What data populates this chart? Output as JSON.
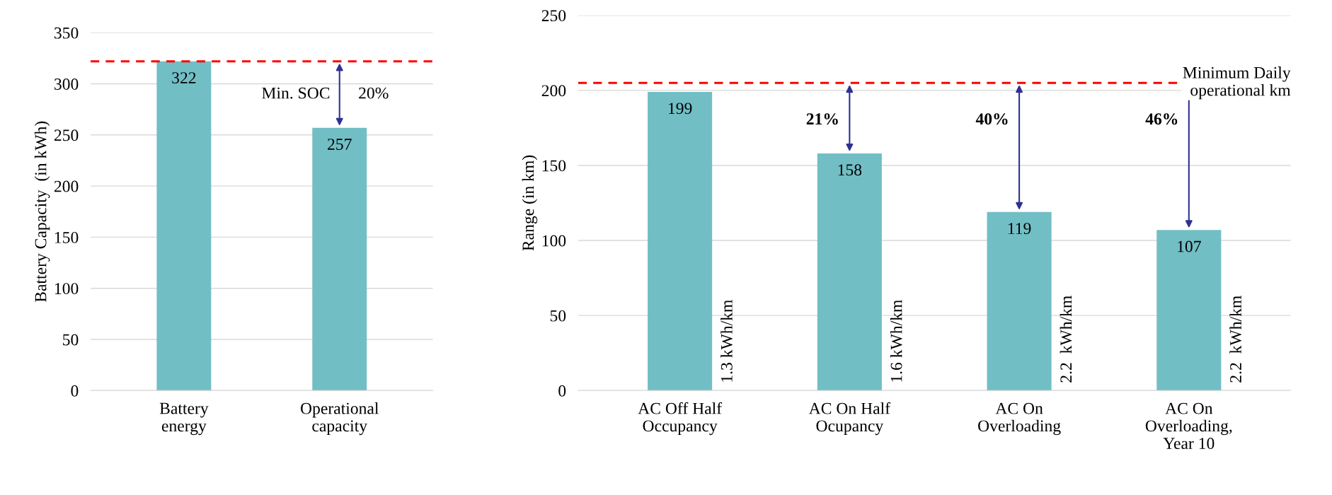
{
  "chart_data": [
    {
      "type": "bar",
      "ylabel": "Battery Capacity  (in kWh)",
      "categories": [
        "Battery\nenergy",
        "Operational\ncapacity"
      ],
      "values": [
        322,
        257
      ],
      "color": "#72bec5",
      "ylim": [
        0,
        350
      ],
      "yticks": [
        0,
        50,
        100,
        150,
        200,
        250,
        300,
        350
      ],
      "grid": "y",
      "data_labels": true,
      "ref_lines": [
        {
          "axis": "y",
          "value": 322,
          "color": "#ff0000",
          "line_style": "dashed"
        }
      ],
      "annotations": [
        "Min. SOC",
        "20%"
      ]
    },
    {
      "type": "bar",
      "ylabel": "Range (in km)",
      "categories": [
        "AC Off Half\nOccupancy",
        "AC On Half\nOcupancy",
        "AC On\nOverloading",
        "AC On\nOverloading,\nYear 10"
      ],
      "values": [
        199,
        158,
        119,
        107
      ],
      "color": "#72bec5",
      "ylim": [
        0,
        250
      ],
      "yticks": [
        0,
        50,
        100,
        150,
        200,
        250
      ],
      "grid": "y",
      "data_labels": true,
      "ref_lines": [
        {
          "axis": "y",
          "value": 205,
          "label": "Minimum Daily\noperational km",
          "color": "#ff0000",
          "line_style": "dashed"
        }
      ],
      "annotations": [
        "21%",
        "40%",
        "46%",
        "1.3 kWh/km",
        "1.6 kWh/km",
        "2.2  kWh/km",
        "2.2  kWh/km"
      ]
    }
  ]
}
